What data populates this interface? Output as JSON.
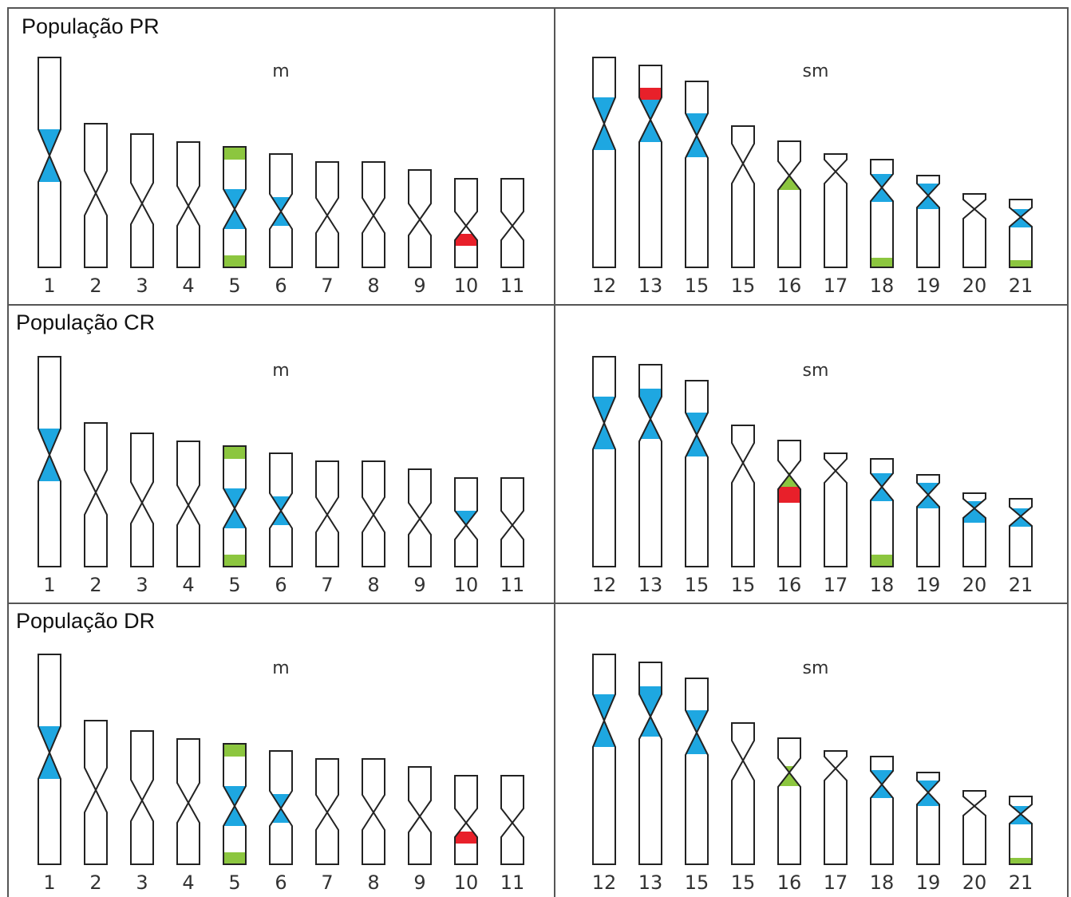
{
  "panels": [
    {
      "title": "População PR",
      "left": {
        "label": "m",
        "chromosomes": [
          "1",
          "2",
          "3",
          "4",
          "5",
          "6",
          "7",
          "8",
          "9",
          "10",
          "11"
        ]
      },
      "right": {
        "label": "sm",
        "chromosomes": [
          "12",
          "13",
          "15",
          "15",
          "16",
          "17",
          "18",
          "19",
          "20",
          "21"
        ]
      }
    },
    {
      "title": "População CR",
      "left": {
        "label": "m",
        "chromosomes": [
          "1",
          "2",
          "3",
          "4",
          "5",
          "6",
          "7",
          "8",
          "9",
          "10",
          "11"
        ]
      },
      "right": {
        "label": "sm",
        "chromosomes": [
          "12",
          "13",
          "15",
          "15",
          "16",
          "17",
          "18",
          "19",
          "20",
          "21"
        ]
      }
    },
    {
      "title": "População DR",
      "left": {
        "label": "m",
        "chromosomes": [
          "1",
          "2",
          "3",
          "4",
          "5",
          "6",
          "7",
          "8",
          "9",
          "10",
          "11"
        ]
      },
      "right": {
        "label": "sm",
        "chromosomes": [
          "12",
          "13",
          "15",
          "15",
          "16",
          "17",
          "18",
          "19",
          "20",
          "21"
        ]
      }
    }
  ]
}
